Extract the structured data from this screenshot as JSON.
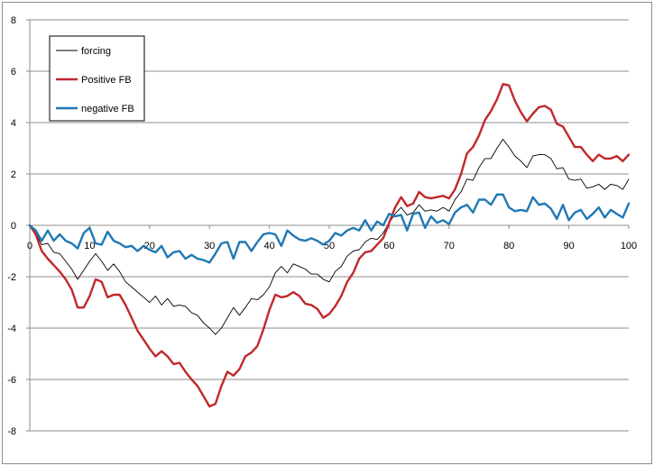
{
  "chart_data": {
    "type": "line",
    "title": "",
    "xlabel": "",
    "ylabel": "",
    "xlim": [
      0,
      100
    ],
    "ylim": [
      -8,
      8
    ],
    "x_ticks": [
      "0",
      "10",
      "20",
      "30",
      "40",
      "50",
      "60",
      "70",
      "80",
      "90",
      "100"
    ],
    "y_ticks": [
      "8",
      "6",
      "4",
      "2",
      "0",
      "-2",
      "-4",
      "-6",
      "-8"
    ],
    "grid": "horizontal",
    "legend_placement": "top-left",
    "legend": [
      "forcing",
      "Positive FB",
      "negative FB"
    ],
    "series": [
      {
        "name": "forcing",
        "color": "#000000",
        "width": 0.9,
        "x": [
          0,
          1,
          2,
          3,
          4,
          5,
          6,
          7,
          8,
          9,
          10,
          11,
          12,
          13,
          14,
          15,
          16,
          17,
          18,
          19,
          20,
          21,
          22,
          23,
          24,
          25,
          26,
          27,
          28,
          29,
          30,
          31,
          32,
          33,
          34,
          35,
          36,
          37,
          38,
          39,
          40,
          41,
          42,
          43,
          44,
          45,
          46,
          47,
          48,
          49,
          50,
          51,
          52,
          53,
          54,
          55,
          56,
          57,
          58,
          59,
          60,
          61,
          62,
          63,
          64,
          65,
          66,
          67,
          68,
          69,
          70,
          71,
          72,
          73,
          74,
          75,
          76,
          77,
          78,
          79,
          80,
          81,
          82,
          83,
          84,
          85,
          86,
          87,
          88,
          89,
          90,
          91,
          92,
          93,
          94,
          95,
          96,
          97,
          98,
          99,
          100
        ],
        "values": [
          0,
          -0.3,
          -0.75,
          -0.7,
          -1.05,
          -1.1,
          -1.4,
          -1.7,
          -2.1,
          -1.75,
          -1.4,
          -1.1,
          -1.4,
          -1.75,
          -1.5,
          -1.8,
          -2.2,
          -2.4,
          -2.6,
          -2.8,
          -3.0,
          -2.75,
          -3.1,
          -2.85,
          -3.15,
          -3.1,
          -3.15,
          -3.4,
          -3.5,
          -3.8,
          -4.0,
          -4.25,
          -4.0,
          -3.6,
          -3.2,
          -3.5,
          -3.2,
          -2.85,
          -2.9,
          -2.7,
          -2.4,
          -1.85,
          -1.6,
          -1.85,
          -1.5,
          -1.6,
          -1.7,
          -1.9,
          -1.9,
          -2.1,
          -2.2,
          -1.8,
          -1.6,
          -1.2,
          -1.0,
          -0.95,
          -0.65,
          -0.5,
          -0.55,
          -0.3,
          0.1,
          0.45,
          0.7,
          0.4,
          0.5,
          0.8,
          0.55,
          0.6,
          0.55,
          0.7,
          0.55,
          1.0,
          1.3,
          1.8,
          1.75,
          2.25,
          2.6,
          2.6,
          3.0,
          3.35,
          3.05,
          2.7,
          2.5,
          2.25,
          2.7,
          2.75,
          2.75,
          2.6,
          2.2,
          2.25,
          1.8,
          1.75,
          1.8,
          1.45,
          1.5,
          1.6,
          1.4,
          1.6,
          1.55,
          1.4,
          1.8
        ]
      },
      {
        "name": "Positive FB",
        "color": "#c0282c",
        "width": 2.4,
        "x": [
          0,
          1,
          2,
          3,
          4,
          5,
          6,
          7,
          8,
          9,
          10,
          11,
          12,
          13,
          14,
          15,
          16,
          17,
          18,
          19,
          20,
          21,
          22,
          23,
          24,
          25,
          26,
          27,
          28,
          29,
          30,
          31,
          32,
          33,
          34,
          35,
          36,
          37,
          38,
          39,
          40,
          41,
          42,
          43,
          44,
          45,
          46,
          47,
          48,
          49,
          50,
          51,
          52,
          53,
          54,
          55,
          56,
          57,
          58,
          59,
          60,
          61,
          62,
          63,
          64,
          65,
          66,
          67,
          68,
          69,
          70,
          71,
          72,
          73,
          74,
          75,
          76,
          77,
          78,
          79,
          80,
          81,
          82,
          83,
          84,
          85,
          86,
          87,
          88,
          89,
          90,
          91,
          92,
          93,
          94,
          95,
          96,
          97,
          98,
          99,
          100
        ],
        "values": [
          0,
          -0.35,
          -1.0,
          -1.3,
          -1.55,
          -1.8,
          -2.1,
          -2.5,
          -3.2,
          -3.2,
          -2.75,
          -2.1,
          -2.2,
          -2.8,
          -2.7,
          -2.7,
          -3.1,
          -3.6,
          -4.1,
          -4.45,
          -4.8,
          -5.1,
          -4.9,
          -5.1,
          -5.4,
          -5.35,
          -5.7,
          -6.0,
          -6.25,
          -6.65,
          -7.05,
          -6.95,
          -6.25,
          -5.7,
          -5.85,
          -5.6,
          -5.1,
          -4.95,
          -4.7,
          -4.05,
          -3.3,
          -2.7,
          -2.8,
          -2.75,
          -2.6,
          -2.75,
          -3.05,
          -3.1,
          -3.25,
          -3.6,
          -3.45,
          -3.15,
          -2.75,
          -2.2,
          -1.85,
          -1.3,
          -1.05,
          -1.0,
          -0.75,
          -0.5,
          0.1,
          0.7,
          1.1,
          0.75,
          0.85,
          1.3,
          1.1,
          1.05,
          1.1,
          1.15,
          1.05,
          1.4,
          2.0,
          2.8,
          3.05,
          3.5,
          4.1,
          4.45,
          4.9,
          5.5,
          5.45,
          4.85,
          4.4,
          4.05,
          4.35,
          4.6,
          4.65,
          4.5,
          3.95,
          3.85,
          3.45,
          3.05,
          3.05,
          2.75,
          2.5,
          2.75,
          2.6,
          2.6,
          2.7,
          2.5,
          2.75
        ]
      },
      {
        "name": "negative FB",
        "color": "#1f78b4",
        "width": 2.4,
        "x": [
          0,
          1,
          2,
          3,
          4,
          5,
          6,
          7,
          8,
          9,
          10,
          11,
          12,
          13,
          14,
          15,
          16,
          17,
          18,
          19,
          20,
          21,
          22,
          23,
          24,
          25,
          26,
          27,
          28,
          29,
          30,
          31,
          32,
          33,
          34,
          35,
          36,
          37,
          38,
          39,
          40,
          41,
          42,
          43,
          44,
          45,
          46,
          47,
          48,
          49,
          50,
          51,
          52,
          53,
          54,
          55,
          56,
          57,
          58,
          59,
          60,
          61,
          62,
          63,
          64,
          65,
          66,
          67,
          68,
          69,
          70,
          71,
          72,
          73,
          74,
          75,
          76,
          77,
          78,
          79,
          80,
          81,
          82,
          83,
          84,
          85,
          86,
          87,
          88,
          89,
          90,
          91,
          92,
          93,
          94,
          95,
          96,
          97,
          98,
          99,
          100
        ],
        "values": [
          0,
          -0.2,
          -0.6,
          -0.2,
          -0.6,
          -0.35,
          -0.6,
          -0.7,
          -0.9,
          -0.3,
          -0.1,
          -0.7,
          -0.75,
          -0.25,
          -0.6,
          -0.7,
          -0.85,
          -0.8,
          -1.0,
          -0.8,
          -0.95,
          -1.05,
          -0.8,
          -1.25,
          -1.05,
          -1.0,
          -1.3,
          -1.15,
          -1.3,
          -1.35,
          -1.45,
          -1.1,
          -0.7,
          -0.65,
          -1.3,
          -0.65,
          -0.65,
          -1.0,
          -0.65,
          -0.35,
          -0.3,
          -0.35,
          -0.8,
          -0.2,
          -0.4,
          -0.55,
          -0.6,
          -0.5,
          -0.6,
          -0.75,
          -0.6,
          -0.3,
          -0.4,
          -0.2,
          -0.1,
          -0.2,
          0.2,
          -0.2,
          0.15,
          0.0,
          0.45,
          0.35,
          0.4,
          -0.2,
          0.45,
          0.5,
          -0.1,
          0.35,
          0.1,
          0.2,
          0.05,
          0.5,
          0.7,
          0.8,
          0.5,
          1.0,
          1.0,
          0.8,
          1.2,
          1.2,
          0.7,
          0.55,
          0.6,
          0.55,
          1.1,
          0.8,
          0.85,
          0.65,
          0.25,
          0.8,
          0.2,
          0.5,
          0.6,
          0.25,
          0.45,
          0.7,
          0.3,
          0.6,
          0.45,
          0.3,
          0.85
        ]
      }
    ]
  }
}
